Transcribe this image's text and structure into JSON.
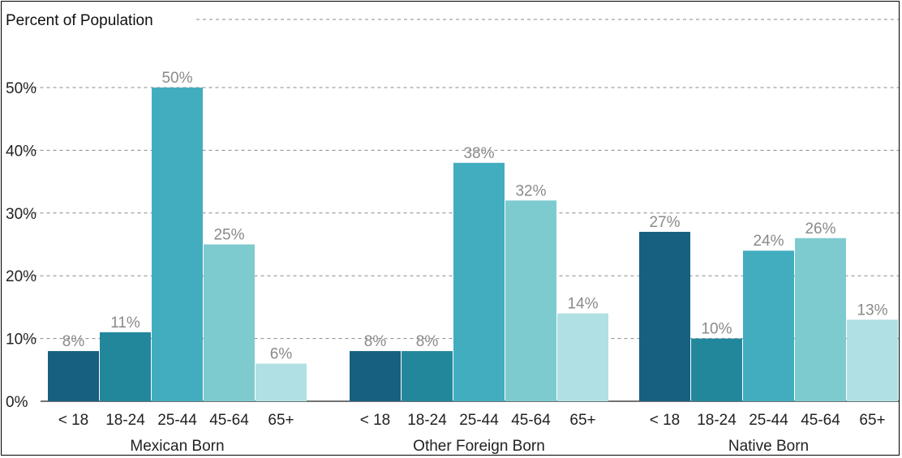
{
  "chart_data": {
    "type": "bar",
    "title": "Percent of Population",
    "ylim": [
      0,
      50
    ],
    "yticks": [
      "0%",
      "10%",
      "20%",
      "30%",
      "40%",
      "50%"
    ],
    "ytick_values": [
      0,
      10,
      20,
      30,
      40,
      50
    ],
    "grid": true,
    "categories": [
      "< 18",
      "18-24",
      "25-44",
      "45-64",
      "65+"
    ],
    "category_colors": [
      "#17607f",
      "#23879c",
      "#43adc0",
      "#7ecbcf",
      "#b0e0e4"
    ],
    "groups": [
      {
        "name": "Mexican Born",
        "values": [
          8,
          11,
          50,
          25,
          6
        ]
      },
      {
        "name": "Other Foreign Born",
        "values": [
          8,
          8,
          38,
          32,
          14
        ]
      },
      {
        "name": "Native Born",
        "values": [
          27,
          10,
          24,
          26,
          13
        ]
      }
    ]
  }
}
